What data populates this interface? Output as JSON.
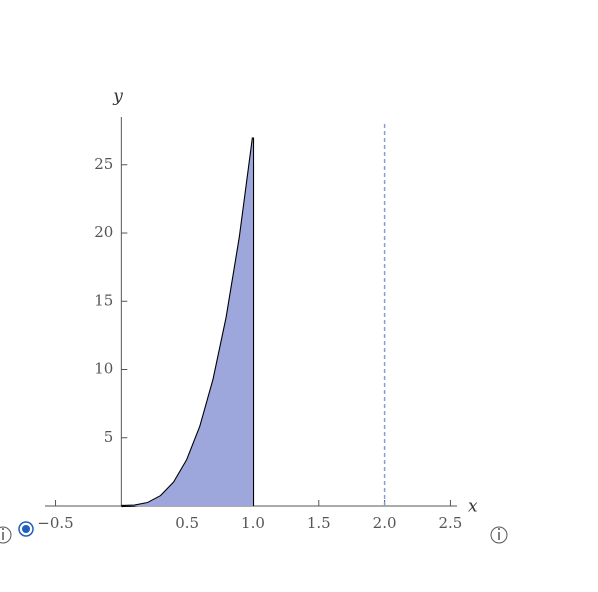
{
  "chart_data": {
    "type": "line",
    "x": [
      0,
      0.1,
      0.2,
      0.3,
      0.4,
      0.5,
      0.6,
      0.7,
      0.8,
      0.9,
      1.0
    ],
    "values": [
      0,
      0.027,
      0.216,
      0.729,
      1.728,
      3.375,
      5.832,
      9.261,
      13.824,
      19.683,
      27
    ],
    "color": "#000000",
    "fill_color": "#9ea7dc",
    "fill": true,
    "vline": 2.0,
    "vline_color": "#8a9bd6",
    "x_label": "x",
    "y_label": "y",
    "xlim": [
      -0.58,
      2.55
    ],
    "ylim": [
      0,
      28.5
    ],
    "xticks": [
      {
        "value": -0.5,
        "label": "−0.5"
      },
      0.5,
      {
        "value": 1.0,
        "label": "1.0"
      },
      1.5,
      {
        "value": 2.0,
        "label": "2.0"
      },
      2.5
    ],
    "yticks": [
      5,
      10,
      15,
      20,
      25
    ]
  }
}
